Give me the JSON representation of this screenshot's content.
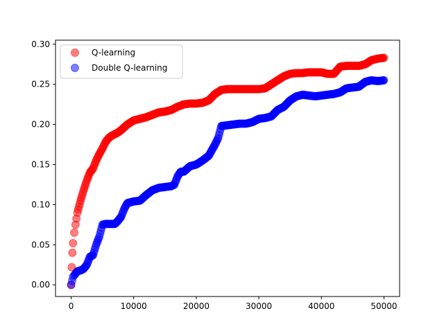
{
  "chart_data": {
    "type": "scatter",
    "title": "",
    "xlabel": "",
    "ylabel": "",
    "xlim": [
      -2500,
      52500
    ],
    "ylim": [
      -0.0145,
      0.305
    ],
    "xticks": [
      {
        "value": 0,
        "label": "0"
      },
      {
        "value": 10000,
        "label": "10000"
      },
      {
        "value": 20000,
        "label": "20000"
      },
      {
        "value": 30000,
        "label": "30000"
      },
      {
        "value": 40000,
        "label": "40000"
      },
      {
        "value": 50000,
        "label": "50000"
      }
    ],
    "yticks": [
      {
        "value": 0.0,
        "label": "0.00"
      },
      {
        "value": 0.05,
        "label": "0.05"
      },
      {
        "value": 0.1,
        "label": "0.10"
      },
      {
        "value": 0.15,
        "label": "0.15"
      },
      {
        "value": 0.2,
        "label": "0.20"
      },
      {
        "value": 0.25,
        "label": "0.25"
      },
      {
        "value": 0.3,
        "label": "0.30"
      }
    ],
    "grid": false,
    "legend": "top-left",
    "series": [
      {
        "name": "Q-learning",
        "color": "#ff0000",
        "alpha": 0.5,
        "x": [
          0,
          100,
          200,
          300,
          500,
          700,
          1000,
          1500,
          2000,
          2500,
          3000,
          3500,
          4000,
          4500,
          5000,
          5500,
          6000,
          6500,
          7000,
          7500,
          8000,
          9000,
          10000,
          11000,
          12000,
          13000,
          14000,
          15000,
          16000,
          17000,
          18000,
          19000,
          20000,
          21000,
          22000,
          23000,
          24000,
          25000,
          26000,
          27000,
          28000,
          29000,
          30000,
          31000,
          32000,
          33000,
          34000,
          35000,
          36000,
          37000,
          38000,
          39000,
          40000,
          41000,
          42000,
          43000,
          44000,
          45000,
          46000,
          47000,
          48000,
          49000,
          50000
        ],
        "y": [
          0.0,
          0.022,
          0.04,
          0.052,
          0.065,
          0.075,
          0.09,
          0.105,
          0.118,
          0.13,
          0.14,
          0.145,
          0.155,
          0.163,
          0.17,
          0.178,
          0.183,
          0.186,
          0.188,
          0.19,
          0.193,
          0.2,
          0.205,
          0.207,
          0.209,
          0.212,
          0.215,
          0.216,
          0.218,
          0.222,
          0.225,
          0.226,
          0.226,
          0.227,
          0.23,
          0.238,
          0.243,
          0.244,
          0.244,
          0.244,
          0.244,
          0.244,
          0.244,
          0.245,
          0.25,
          0.255,
          0.26,
          0.263,
          0.264,
          0.264,
          0.265,
          0.265,
          0.265,
          0.263,
          0.263,
          0.272,
          0.273,
          0.273,
          0.273,
          0.275,
          0.28,
          0.282,
          0.283
        ]
      },
      {
        "name": "Double Q-learning",
        "color": "#0000ff",
        "alpha": 0.5,
        "x": [
          0,
          300,
          500,
          1000,
          1500,
          2000,
          2500,
          3000,
          3500,
          4000,
          4500,
          5000,
          5500,
          6000,
          6500,
          7000,
          7500,
          8000,
          8500,
          9000,
          10000,
          11000,
          12000,
          13000,
          14000,
          15000,
          16000,
          16500,
          17000,
          17500,
          18000,
          19000,
          20000,
          21000,
          22000,
          23000,
          23500,
          24000,
          25000,
          26000,
          27000,
          28000,
          29000,
          30000,
          31000,
          32000,
          33000,
          34000,
          35000,
          36000,
          37000,
          38000,
          39000,
          40000,
          41000,
          42000,
          43000,
          44000,
          45000,
          46000,
          47000,
          48000,
          49000,
          50000
        ],
        "y": [
          0.0,
          0.01,
          0.012,
          0.017,
          0.018,
          0.02,
          0.025,
          0.035,
          0.037,
          0.05,
          0.06,
          0.075,
          0.076,
          0.076,
          0.076,
          0.076,
          0.08,
          0.085,
          0.095,
          0.102,
          0.104,
          0.105,
          0.112,
          0.118,
          0.121,
          0.122,
          0.123,
          0.125,
          0.135,
          0.141,
          0.141,
          0.148,
          0.15,
          0.155,
          0.161,
          0.175,
          0.183,
          0.198,
          0.199,
          0.2,
          0.201,
          0.201,
          0.203,
          0.207,
          0.208,
          0.21,
          0.218,
          0.222,
          0.23,
          0.235,
          0.237,
          0.236,
          0.235,
          0.236,
          0.237,
          0.238,
          0.24,
          0.245,
          0.246,
          0.247,
          0.253,
          0.255,
          0.254,
          0.255
        ]
      }
    ]
  }
}
